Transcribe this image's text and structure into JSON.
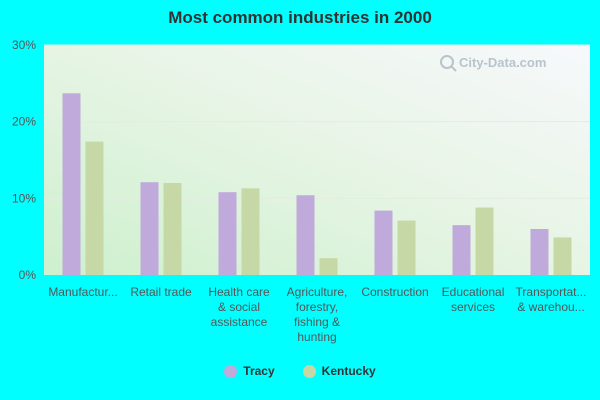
{
  "title": "Most common industries in 2000",
  "watermark": "City-Data.com",
  "colors": {
    "background": "#00ffff",
    "tracy": "#c0a9db",
    "kentucky": "#c5d8a6",
    "axis_text": "#555555"
  },
  "chart_data": {
    "type": "bar",
    "title": "Most common industries in 2000",
    "xlabel": "",
    "ylabel": "",
    "ylim": [
      0,
      30
    ],
    "yticks": [
      0,
      10,
      20,
      30
    ],
    "ytick_labels": [
      "0%",
      "10%",
      "20%",
      "30%"
    ],
    "grid": true,
    "legend_position": "bottom",
    "categories": [
      "Manufactur...",
      "Retail trade",
      "Health care & social assistance",
      "Agriculture, forestry, fishing & hunting",
      "Construction",
      "Educational services",
      "Transportat... & warehou..."
    ],
    "category_label_lines": [
      [
        "Manufactur..."
      ],
      [
        "Retail trade"
      ],
      [
        "Health care",
        "& social",
        "assistance"
      ],
      [
        "Agriculture,",
        "forestry,",
        "fishing &",
        "hunting"
      ],
      [
        "Construction"
      ],
      [
        "Educational",
        "services"
      ],
      [
        "Transportat...",
        "& warehou..."
      ]
    ],
    "series": [
      {
        "name": "Tracy",
        "values": [
          23.7,
          12.1,
          10.8,
          10.4,
          8.4,
          6.5,
          6.0
        ]
      },
      {
        "name": "Kentucky",
        "values": [
          17.4,
          12.0,
          11.3,
          2.2,
          7.1,
          8.8,
          4.9
        ]
      }
    ]
  }
}
